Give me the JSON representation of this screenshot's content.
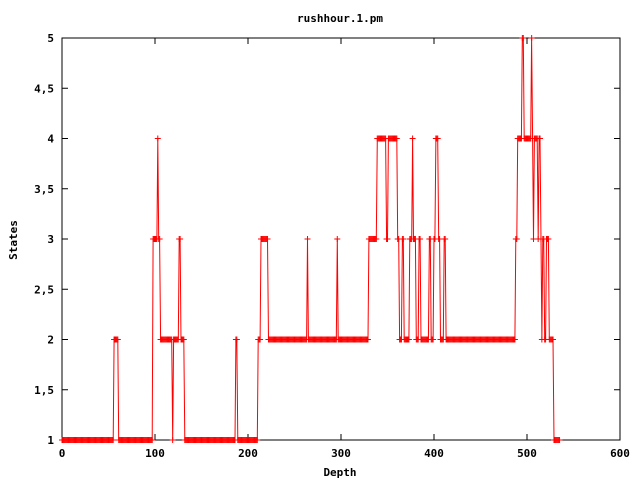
{
  "chart_data": {
    "type": "line",
    "title": "rushhour.1.pm",
    "xlabel": "Depth",
    "ylabel": "States",
    "xlim": [
      0,
      600
    ],
    "ylim": [
      1,
      5
    ],
    "xticks": [
      0,
      100,
      200,
      300,
      400,
      500,
      600
    ],
    "yticks": [
      1,
      1.5,
      2,
      2.5,
      3,
      3.5,
      4,
      4.5,
      5
    ],
    "xtick_labels": [
      "0",
      "100",
      "200",
      "300",
      "400",
      "500",
      "600"
    ],
    "ytick_labels": [
      "1",
      "1,5",
      "2",
      "2,5",
      "3",
      "3,5",
      "4",
      "4,5",
      "5"
    ],
    "grid": false,
    "legend": "none",
    "marker": "plus",
    "series": [
      {
        "color": "#ff0000",
        "steps": [
          [
            0,
            1
          ],
          [
            56,
            2
          ],
          [
            61,
            1
          ],
          [
            98,
            3
          ],
          [
            103,
            4
          ],
          [
            104,
            3
          ],
          [
            106,
            2
          ],
          [
            119,
            1
          ],
          [
            120,
            2
          ],
          [
            126,
            3
          ],
          [
            128,
            2
          ],
          [
            132,
            1
          ],
          [
            187,
            2
          ],
          [
            189,
            1
          ],
          [
            211,
            2
          ],
          [
            214,
            3
          ],
          [
            222,
            2
          ],
          [
            264,
            3
          ],
          [
            265,
            2
          ],
          [
            296,
            3
          ],
          [
            297,
            2
          ],
          [
            330,
            3
          ],
          [
            339,
            4
          ],
          [
            349,
            3
          ],
          [
            351,
            4
          ],
          [
            361,
            3
          ],
          [
            363,
            2
          ],
          [
            366,
            3
          ],
          [
            368,
            2
          ],
          [
            374,
            3
          ],
          [
            377,
            4
          ],
          [
            378,
            3
          ],
          [
            381,
            2
          ],
          [
            384,
            3
          ],
          [
            386,
            2
          ],
          [
            395,
            3
          ],
          [
            397,
            2
          ],
          [
            400,
            3
          ],
          [
            402,
            4
          ],
          [
            405,
            3
          ],
          [
            407,
            2
          ],
          [
            411,
            3
          ],
          [
            413,
            2
          ],
          [
            488,
            3
          ],
          [
            490,
            4
          ],
          [
            495,
            5
          ],
          [
            497,
            4
          ],
          [
            505,
            5
          ],
          [
            506,
            4
          ],
          [
            507,
            3
          ],
          [
            508,
            4
          ],
          [
            512,
            3
          ],
          [
            513,
            4
          ],
          [
            515,
            3
          ],
          [
            516,
            2
          ],
          [
            517,
            3
          ],
          [
            519,
            2
          ],
          [
            521,
            3
          ],
          [
            524,
            2
          ],
          [
            529,
            1
          ],
          [
            535,
            1
          ]
        ]
      }
    ]
  }
}
